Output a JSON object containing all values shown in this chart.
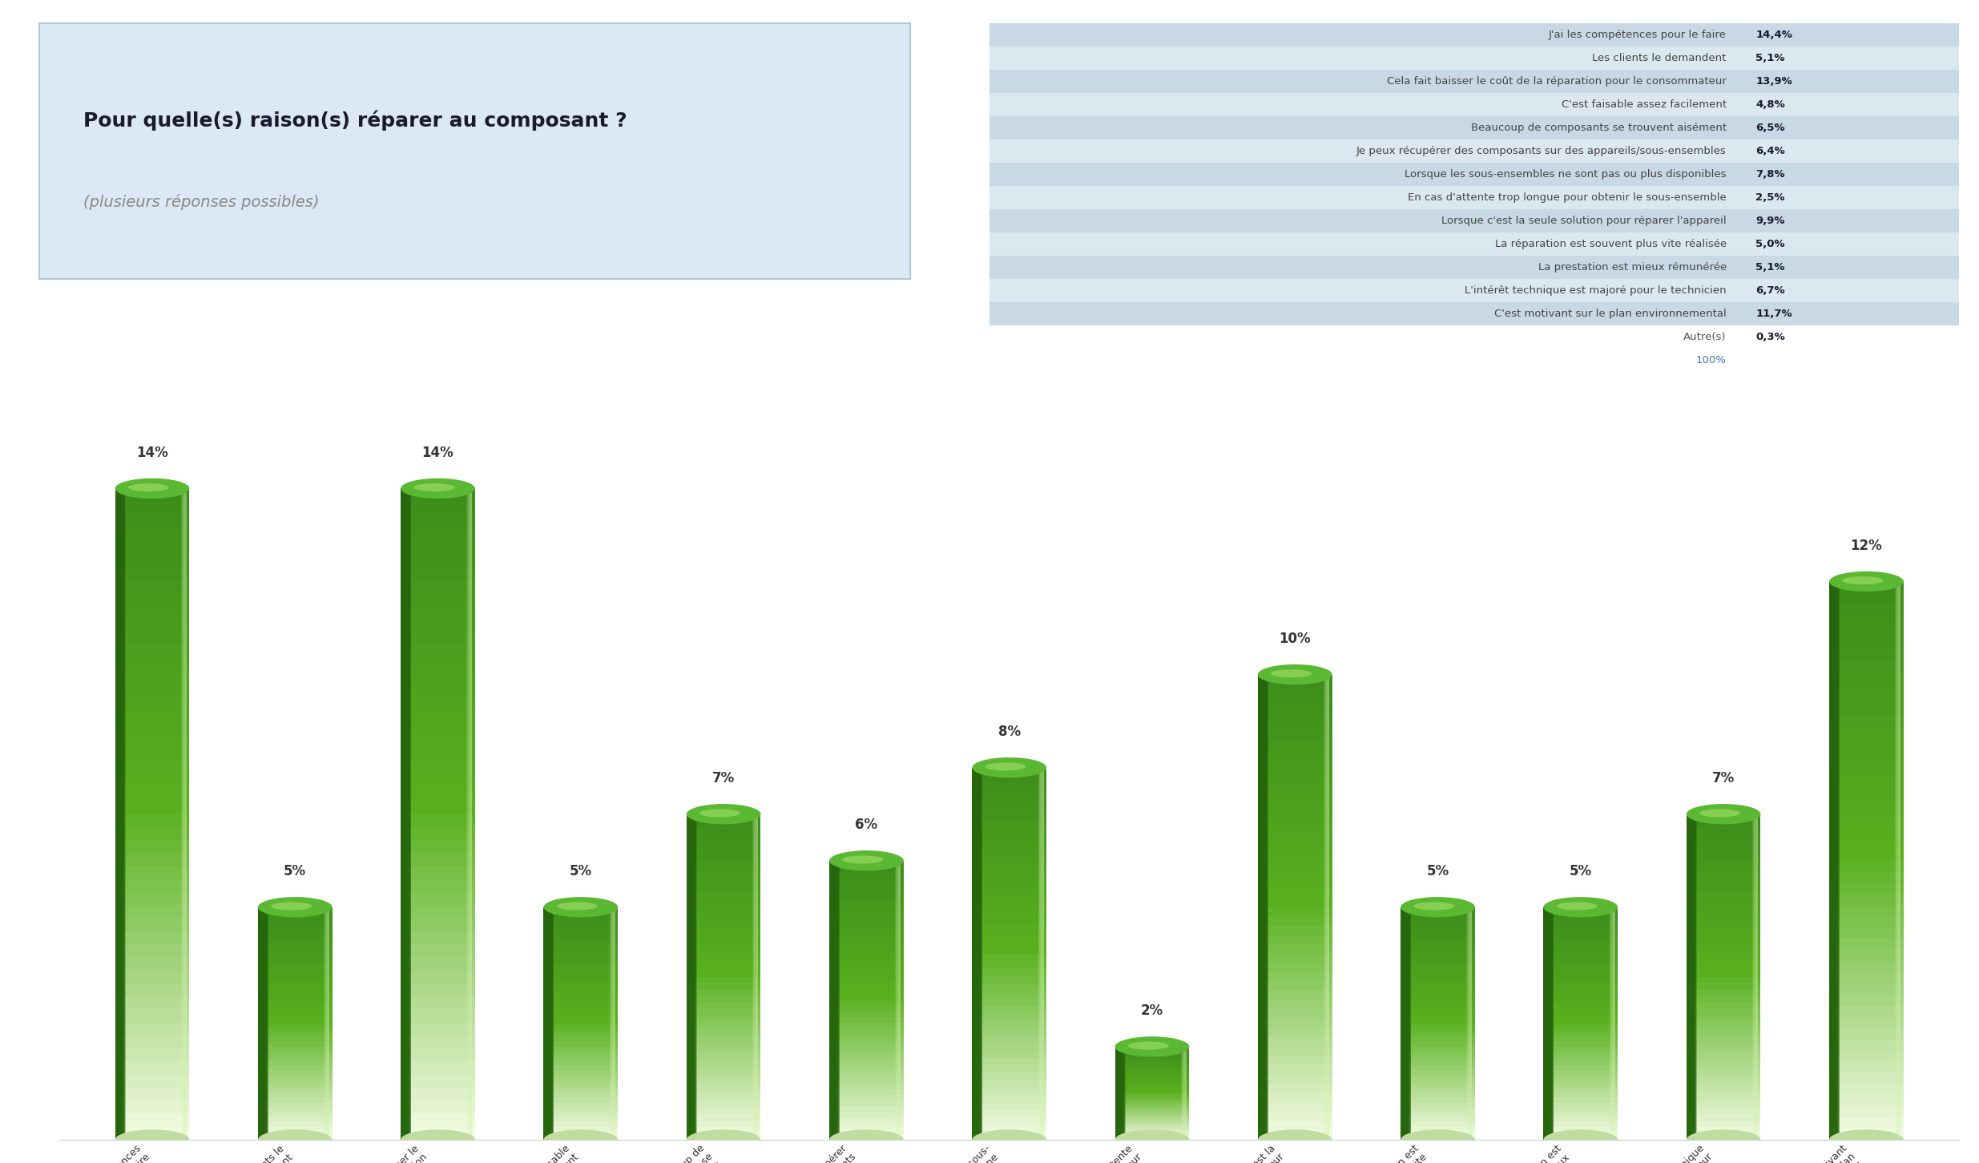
{
  "question_title": "Pour quelle(s) raison(s) réparer au composant ?",
  "question_subtitle": "(plusieurs réponses possibles)",
  "table_data": [
    {
      "label": "J'ai les compétences pour le faire",
      "value": "14,4%"
    },
    {
      "label": "Les clients le demandent",
      "value": "5,1%"
    },
    {
      "label": "Cela fait baisser le coût de la réparation pour le consommateur",
      "value": "13,9%"
    },
    {
      "label": "C'est faisable assez facilement",
      "value": "4,8%"
    },
    {
      "label": "Beaucoup de composants se trouvent aisément",
      "value": "6,5%"
    },
    {
      "label": "Je peux récupérer des composants sur des appareils/sous-ensembles",
      "value": "6,4%"
    },
    {
      "label": "Lorsque les sous-ensembles ne sont pas ou plus disponibles",
      "value": "7,8%"
    },
    {
      "label": "En cas d'attente trop longue pour obtenir le sous-ensemble",
      "value": "2,5%"
    },
    {
      "label": "Lorsque c'est la seule solution pour réparer l'appareil",
      "value": "9,9%"
    },
    {
      "label": "La réparation est souvent plus vite réalisée",
      "value": "5,0%"
    },
    {
      "label": "La prestation est mieux rémunérée",
      "value": "5,1%"
    },
    {
      "label": "L'intérêt technique est majoré pour le technicien",
      "value": "6,7%"
    },
    {
      "label": "C'est motivant sur le plan environnemental",
      "value": "11,7%"
    },
    {
      "label": "Autre(s)",
      "value": "0,3%"
    },
    {
      "label": "100%",
      "value": ""
    }
  ],
  "bar_categories": [
    "J'ai les compétences\npour le faire",
    "Les clients le\ndemandent",
    "Cela fait baisser le\ncoût de la réparation\npour le...",
    "C'est faisable\nassez facilement",
    "Beaucoup de\ncomposants se\ntrouvent aisément",
    "Je peux récupérer\ndes composants\nsur des...",
    "Lorsque les sous-\nensembles ne\nsont pas ou plus...",
    "En cas d'attente\ntrop longue pour\nobtenir le sous-...",
    "Lorsque c'est la\nseule solution pour\nréparer...",
    "La réparation est\nsouvent plus vite\nréalisée",
    "La prestation est\nmieux\nrémunérée",
    "L'intérêt technique\nest majoré pour\nle technicien",
    "C'est motivant\nsur le plan\nenvironnemental"
  ],
  "bar_values": [
    14,
    5,
    14,
    5,
    7,
    6,
    8,
    2,
    10,
    5,
    5,
    7,
    12
  ],
  "bar_labels": [
    "14%",
    "5%",
    "14%",
    "5%",
    "7%",
    "6%",
    "8%",
    "2%",
    "10%",
    "5%",
    "5%",
    "7%",
    "12%"
  ],
  "background_color": "#ffffff",
  "box_color": "#dce9f5",
  "box_border_color": "#b0c8de",
  "table_row_color_even": "#c8d8e4",
  "table_row_color_odd": "#dce8f0",
  "title_color": "#1a1a2e",
  "subtitle_color": "#888888",
  "value_bold_color": "#1a1a2e",
  "hundred_color": "#4472c4",
  "autre_label_color": "#555555",
  "bar_green_dark": "#3a8c1e",
  "bar_green_mid": "#5ab832",
  "bar_green_light": "#c8eeaa",
  "bar_green_white": "#eaf8d8",
  "bar_shadow": "#2a6010"
}
